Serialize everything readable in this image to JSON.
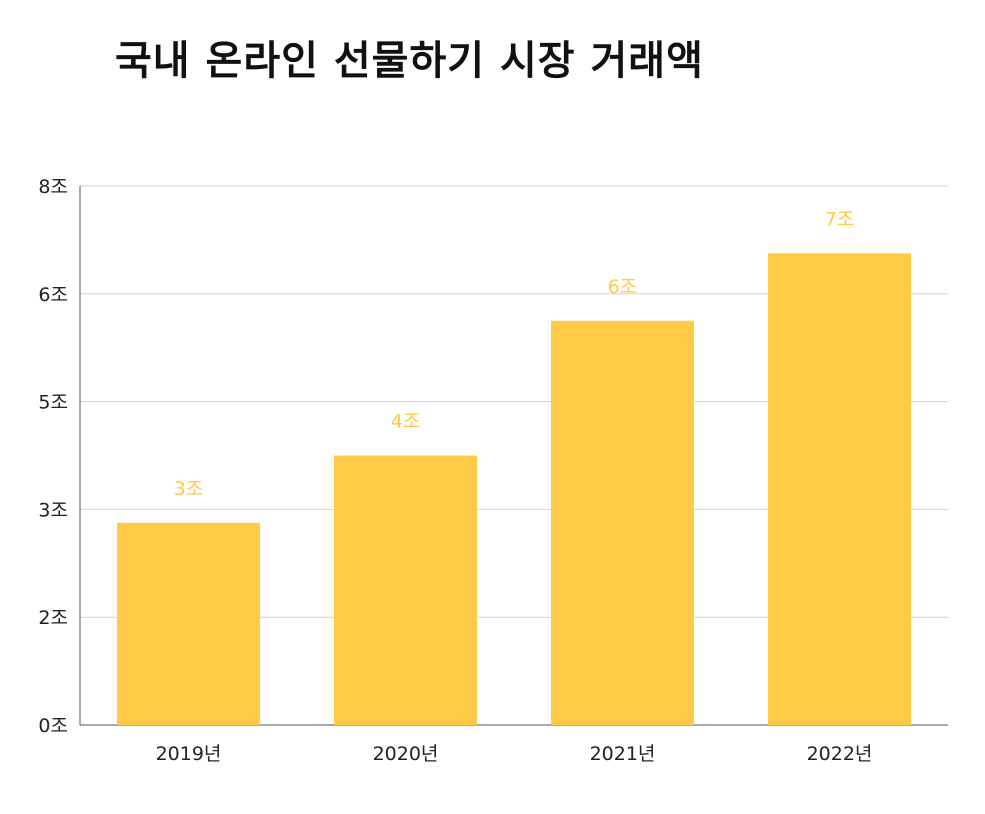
{
  "title": "국내 온라인 선물하기 시장 거래액",
  "colors": {
    "bar": "#FFCB47",
    "label": "#FFCB47",
    "grid": "#D4D4D4",
    "axis": "#555555",
    "text": "#222222"
  },
  "chart_data": {
    "type": "bar",
    "title": "국내 온라인 선물하기 시장 거래액",
    "categories": [
      "2019년",
      "2020년",
      "2021년",
      "2022년"
    ],
    "values": [
      3.0,
      4.0,
      6.0,
      7.0
    ],
    "data_labels": [
      "3조",
      "4조",
      "6조",
      "7조"
    ],
    "yticks": [
      0,
      1.6,
      3.2,
      4.8,
      6.4,
      8.0
    ],
    "ytick_labels": [
      "0조",
      "2조",
      "3조",
      "5조",
      "6조",
      "8조"
    ],
    "ylim": [
      0,
      8.0
    ],
    "xlabel": "",
    "ylabel": "",
    "grid": true,
    "legend": "none"
  }
}
